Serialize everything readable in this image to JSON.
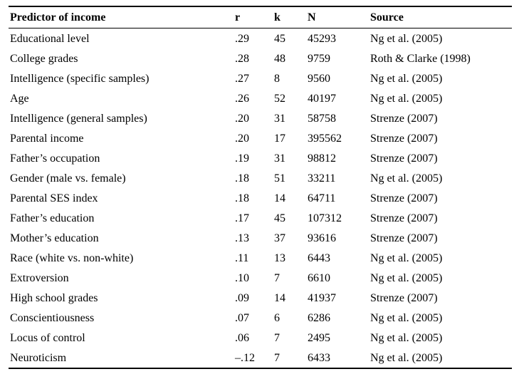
{
  "table": {
    "columns": [
      "Predictor of income",
      "r",
      "k",
      "N",
      "Source"
    ],
    "rows": [
      [
        "Educational level",
        ".29",
        "45",
        "45293",
        "Ng et al. (2005)"
      ],
      [
        "College grades",
        ".28",
        "48",
        "9759",
        "Roth & Clarke (1998)"
      ],
      [
        "Intelligence (specific samples)",
        ".27",
        "8",
        "9560",
        "Ng et al. (2005)"
      ],
      [
        "Age",
        ".26",
        "52",
        "40197",
        "Ng et al. (2005)"
      ],
      [
        "Intelligence (general samples)",
        ".20",
        "31",
        "58758",
        "Strenze (2007)"
      ],
      [
        "Parental income",
        ".20",
        "17",
        "395562",
        "Strenze (2007)"
      ],
      [
        "Father’s occupation",
        ".19",
        "31",
        "98812",
        "Strenze (2007)"
      ],
      [
        "Gender (male vs. female)",
        ".18",
        "51",
        "33211",
        "Ng et al. (2005)"
      ],
      [
        "Parental SES index",
        ".18",
        "14",
        "64711",
        "Strenze (2007)"
      ],
      [
        "Father’s education",
        ".17",
        "45",
        "107312",
        "Strenze (2007)"
      ],
      [
        "Mother’s education",
        ".13",
        "37",
        "93616",
        "Strenze (2007)"
      ],
      [
        "Race (white vs. non-white)",
        ".11",
        "13",
        "6443",
        "Ng et al. (2005)"
      ],
      [
        "Extroversion",
        ".10",
        "7",
        "6610",
        "Ng et al. (2005)"
      ],
      [
        "High school grades",
        ".09",
        "14",
        "41937",
        "Strenze (2007)"
      ],
      [
        "Conscientiousness",
        ".07",
        "6",
        "6286",
        "Ng et al. (2005)"
      ],
      [
        "Locus of control",
        ".06",
        "7",
        "2495",
        "Ng et al. (2005)"
      ],
      [
        "Neuroticism",
        "–.12",
        "7",
        "6433",
        "Ng et al. (2005)"
      ]
    ]
  }
}
